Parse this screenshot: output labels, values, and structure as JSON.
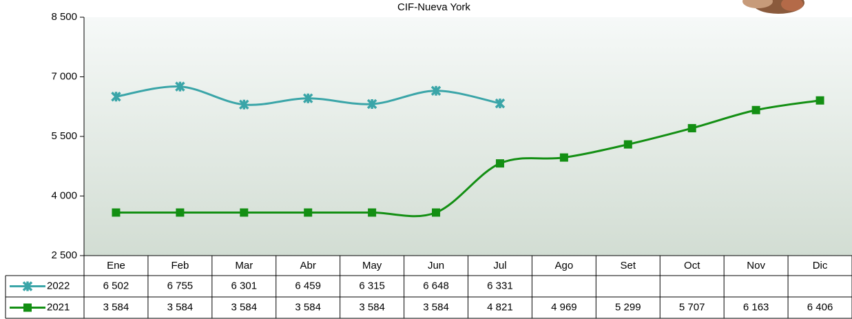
{
  "chart_data": {
    "type": "line",
    "title": "CIF-Nueva York",
    "categories": [
      "Ene",
      "Feb",
      "Mar",
      "Abr",
      "May",
      "Jun",
      "Jul",
      "Ago",
      "Set",
      "Oct",
      "Nov",
      "Dic"
    ],
    "series": [
      {
        "name": "2022",
        "color": "#3aa5a8",
        "marker": "star",
        "values": [
          6502,
          6755,
          6301,
          6459,
          6315,
          6648,
          6331,
          null,
          null,
          null,
          null,
          null
        ],
        "value_labels": [
          "6 502",
          "6 755",
          "6 301",
          "6 459",
          "6 315",
          "6 648",
          "6 331",
          null,
          null,
          null,
          null,
          null
        ]
      },
      {
        "name": "2021",
        "color": "#138f13",
        "marker": "square",
        "values": [
          3584,
          3584,
          3584,
          3584,
          3584,
          3584,
          4821,
          4969,
          5299,
          5707,
          6163,
          6406
        ],
        "value_labels": [
          "3 584",
          "3 584",
          "3 584",
          "3 584",
          "3 584",
          "3 584",
          "4 821",
          "4 969",
          "5 299",
          "5 707",
          "6 163",
          "6 406"
        ]
      }
    ],
    "ylim": [
      2500,
      8500
    ],
    "yticks": [
      {
        "value": 2500,
        "label": "2 500"
      },
      {
        "value": 4000,
        "label": "4 000"
      },
      {
        "value": 5500,
        "label": "5 500"
      },
      {
        "value": 7000,
        "label": "7 000"
      },
      {
        "value": 8500,
        "label": "8 500"
      }
    ],
    "grid": false
  }
}
